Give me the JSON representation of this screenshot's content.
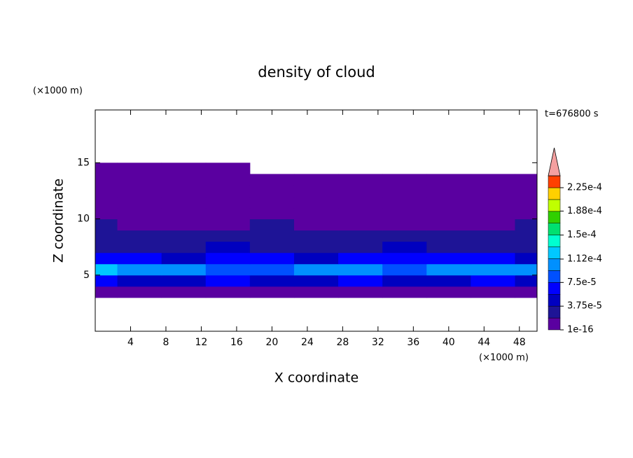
{
  "chart_data": {
    "type": "contour",
    "title": "density of cloud",
    "xlabel": "X coordinate",
    "ylabel": "Z coordinate",
    "x_unit": "(×1000 m)",
    "y_unit": "(×1000 m)",
    "annotation": "t=676800 s",
    "xlim": [
      0,
      50
    ],
    "ylim": [
      0,
      19.7
    ],
    "xticks": [
      4,
      8,
      12,
      16,
      20,
      24,
      28,
      32,
      36,
      40,
      44,
      48
    ],
    "yticks": [
      5,
      10,
      15
    ],
    "x": [
      0,
      5,
      10,
      15,
      20,
      25,
      30,
      35,
      40,
      45,
      50
    ],
    "z": [
      3.5,
      4.5,
      5.5,
      6.5,
      7.5,
      8.5,
      9.5,
      10.5,
      11.5,
      12.5,
      13.5,
      14.5
    ],
    "values": [
      [
        1e-05,
        1.2e-05,
        1.2e-05,
        1e-05,
        1.2e-05,
        1.2e-05,
        1e-05,
        1.2e-05,
        1.2e-05,
        1e-05,
        1.2e-05
      ],
      [
        6e-05,
        5.5e-05,
        5e-05,
        6e-05,
        5e-05,
        5.5e-05,
        6e-05,
        5e-05,
        5.5e-05,
        6e-05,
        5.5e-05
      ],
      [
        0.00013,
        9.5e-05,
        0.0001,
        8e-05,
        9e-05,
        0.000105,
        0.0001,
        9e-05,
        9.5e-05,
        0.0001,
        0.00011
      ],
      [
        7e-05,
        6e-05,
        5e-05,
        6.5e-05,
        6e-05,
        5.5e-05,
        6e-05,
        6.5e-05,
        7e-05,
        6e-05,
        5e-05
      ],
      [
        3e-05,
        3.5e-05,
        3e-05,
        4e-05,
        3.5e-05,
        3e-05,
        3.5e-05,
        4e-05,
        3e-05,
        3.5e-05,
        3e-05
      ],
      [
        2.5e-05,
        2.8e-05,
        2.2e-05,
        2.5e-05,
        3e-05,
        2.5e-05,
        2.2e-05,
        2.6e-05,
        2.8e-05,
        2.5e-05,
        2.2e-05
      ],
      [
        2e-05,
        1.5e-05,
        1.2e-05,
        1.5e-05,
        2e-05,
        1.5e-05,
        1.2e-05,
        1.5e-05,
        1.2e-05,
        1.5e-05,
        2e-05
      ],
      [
        1.5e-05,
        1e-05,
        8e-06,
        5e-06,
        1e-05,
        8e-06,
        5e-06,
        8e-06,
        1e-05,
        5e-06,
        8e-06
      ],
      [
        2e-06,
        2e-06,
        2e-06,
        2e-06,
        2e-06,
        2e-06,
        2e-06,
        2e-06,
        2e-06,
        2e-06,
        2e-06
      ],
      [
        2e-06,
        2e-06,
        2e-06,
        2e-06,
        2e-06,
        2e-06,
        2e-06,
        2e-06,
        2e-06,
        2e-06,
        2e-06
      ],
      [
        2e-06,
        2e-06,
        2e-06,
        2e-06,
        2e-06,
        2e-06,
        2e-06,
        2e-06,
        2e-06,
        2e-06,
        2e-06
      ],
      [
        2e-06,
        2e-06,
        2e-06,
        2e-06,
        null,
        null,
        null,
        null,
        null,
        null,
        null
      ]
    ],
    "levels": [
      1e-16,
      1.875e-05,
      3.75e-05,
      5.625e-05,
      7.5e-05,
      9.375e-05,
      0.0001125,
      0.00013125,
      0.00015,
      0.00016875,
      0.0001875,
      0.00020625,
      0.000225,
      0.00024375
    ],
    "colors": [
      "#5a00a0",
      "#1e1496",
      "#0000c0",
      "#0000ff",
      "#0050ff",
      "#0090ff",
      "#00c8ff",
      "#00ffd0",
      "#00e070",
      "#30d000",
      "#c0ff00",
      "#ffd000",
      "#ff4000",
      "#f4a0a0"
    ],
    "colorbar_ticks": [
      {
        "value": 1e-16,
        "label": "1e-16"
      },
      {
        "value": 3.75e-05,
        "label": "3.75e-5"
      },
      {
        "value": 7.5e-05,
        "label": "7.5e-5"
      },
      {
        "value": 0.000112,
        "label": "1.12e-4"
      },
      {
        "value": 0.00015,
        "label": "1.5e-4"
      },
      {
        "value": 0.000188,
        "label": "1.88e-4"
      },
      {
        "value": 0.000225,
        "label": "2.25e-4"
      }
    ]
  }
}
